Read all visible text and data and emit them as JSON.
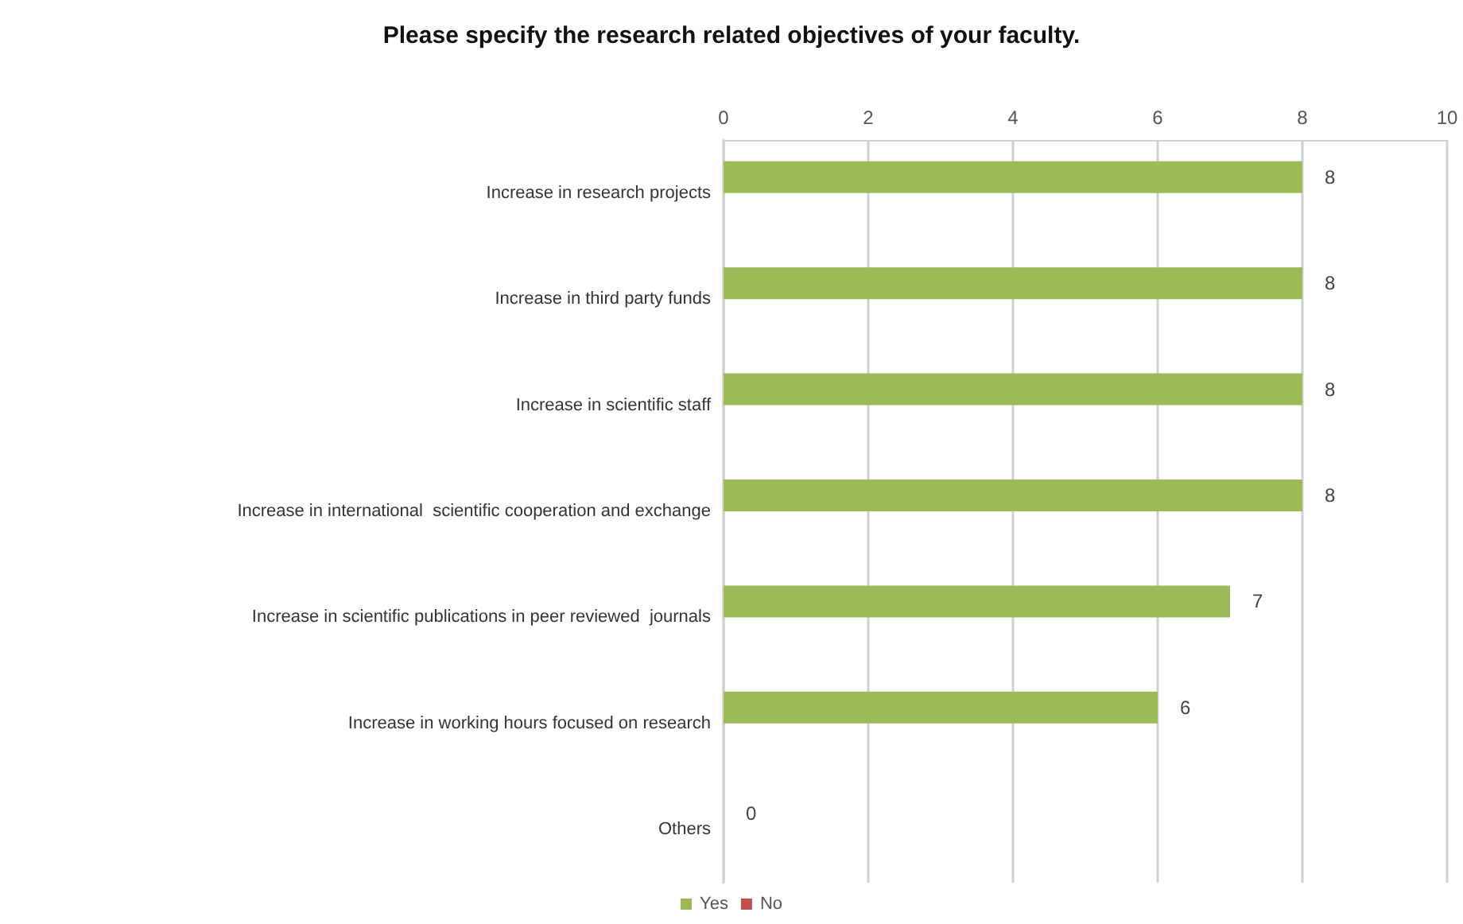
{
  "chart_data": {
    "type": "bar",
    "orientation": "horizontal",
    "title": "Please specify the research related objectives of your faculty.",
    "categories": [
      "Increase in research projects",
      "Increase in third party funds",
      "Increase in scientific staff",
      "Increase in international  scientific cooperation and exchange",
      "Increase in scientific publications in peer reviewed  journals",
      "Increase in working hours focused on research",
      "Others"
    ],
    "series": [
      {
        "name": "Yes",
        "color": "#9bbb59",
        "values": [
          8,
          8,
          8,
          8,
          7,
          6,
          0
        ],
        "value_labels": [
          "8",
          "8",
          "8",
          "8",
          "7",
          "6",
          "0"
        ]
      },
      {
        "name": "No",
        "color": "#c0504d",
        "values": [
          0,
          0,
          0,
          0,
          0,
          0,
          0
        ]
      }
    ],
    "xlim": [
      0,
      10
    ],
    "xticks": [
      0,
      2,
      4,
      6,
      8,
      10
    ],
    "grid": "x",
    "legend": "bottom"
  }
}
